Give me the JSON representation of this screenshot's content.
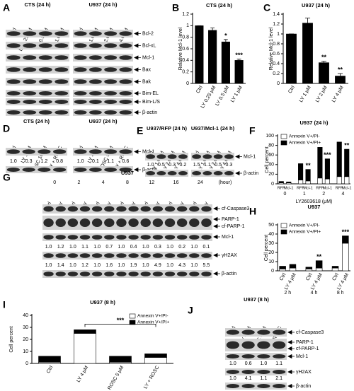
{
  "letters": [
    "A",
    "B",
    "C",
    "D",
    "E",
    "F",
    "G",
    "H",
    "I",
    "J"
  ],
  "blots": {
    "A": {
      "groups": [
        {
          "title": "CTS (24 h)",
          "lanes": [
            "Ctrl",
            "LY 0.25 μM",
            "LY 0.5 μM",
            "LY 1.0 μM"
          ]
        },
        {
          "title": "U937 (24 h)",
          "lanes": [
            "Ctrl",
            "LY 1.0 μM",
            "LY 2.0 μM",
            "LY 4.0 μM"
          ]
        }
      ],
      "bands": [
        "Bcl-2",
        "Bcl-xL",
        "Mcl-1",
        "Bax",
        "Bak",
        "Bim-EL",
        "Bim-L/S",
        "β-actin"
      ]
    },
    "D": {
      "groups": [
        {
          "title": "CTS (24 h)",
          "lanes": [
            "Ctrl",
            "LY 1 μM",
            "ROSC 10 μM",
            "LY + ROSC"
          ],
          "quant": [
            "1.0",
            "0.3",
            "1.2",
            "0.8"
          ]
        },
        {
          "title": "U937 (24 h)",
          "lanes": [
            "Ctrl",
            "LY 4 μM",
            "ROSC 5 μM",
            "LY + ROSC"
          ],
          "quant": [
            "1.0",
            "0.1",
            "1.1",
            "0.6"
          ]
        }
      ],
      "bands": [
        "Mcl-1",
        "β-actin"
      ]
    },
    "E": {
      "groups": [
        {
          "title": "U937/RFP (24 h)",
          "lanes": [
            "Ctrl",
            "LY 1.0 μM",
            "LY 2.0 μM",
            "LY 4.0 μM"
          ],
          "quant": [
            "1.0",
            "0.5",
            "0.3",
            "0.2"
          ]
        },
        {
          "title": "U937/Mcl-1 (24 h)",
          "lanes": [
            "Ctrl",
            "LY 1.0 μM",
            "LY 2.0 μM",
            "LY 4.0 μM"
          ],
          "quant": [
            "1.5",
            "1.1",
            "0.5",
            "0.3"
          ]
        }
      ],
      "bands": [
        "Mcl-1",
        "β-actin"
      ]
    },
    "G": {
      "title": "U937",
      "times": [
        "0",
        "2",
        "4",
        "8",
        "12",
        "16",
        "24"
      ],
      "time_unit": "(hour)",
      "lanes": [
        "Ctrl",
        "LY"
      ],
      "bands": [
        "cf-Caspase3",
        "PARP-1",
        "cf-PARP-1",
        "Mcl-1",
        "γH2AX",
        "β-actin"
      ],
      "quant": [
        [
          "1.0",
          "1.2",
          "1.0",
          "1.1",
          "1.0",
          "0.7",
          "1.0",
          "0.4",
          "1.0",
          "0.3",
          "1.0",
          "0.2",
          "1.0",
          "0.1"
        ],
        [
          "1.0",
          "1.4",
          "1.0",
          "1.2",
          "1.0",
          "1.6",
          "1.0",
          "1.9",
          "1.0",
          "4.9",
          "1.0",
          "4.3",
          "1.0",
          "5.5"
        ]
      ]
    },
    "J": {
      "title": "U937 (8 h)",
      "lanes": [
        "Ctrl",
        "LY 4 μM",
        "ROSC 5 μM",
        "LY + ROSC"
      ],
      "bands": [
        "cf-Caspase3",
        "PARP-1",
        "cf-PARP-1",
        "Mcl-1",
        "γH2AX",
        "β-actin"
      ],
      "quant": [
        [
          "1.0",
          "0.6",
          "1.0",
          "1.1"
        ],
        [
          "1.0",
          "4.1",
          "1.1",
          "2.1"
        ]
      ]
    }
  },
  "chart_data": [
    {
      "type": "bar",
      "title": "CTS (24 h)",
      "ylabel": "Relative Mcl-1 level",
      "categories": [
        "Ctrl",
        "LY 0.25 μM",
        "LY 0.5 μM",
        "LY 1 μM"
      ],
      "values": [
        1.0,
        0.92,
        0.72,
        0.4
      ],
      "errors": [
        0,
        0.04,
        0.04,
        0.02
      ],
      "annotations": [
        null,
        null,
        "*",
        "***"
      ],
      "color": "#000000",
      "ylim": [
        0,
        1.2
      ],
      "yticks": [
        0,
        0.2,
        0.4,
        0.6,
        0.8,
        1,
        1.2
      ],
      "xtick_rotation": 60
    },
    {
      "type": "bar",
      "title": "U937 (24 h)",
      "ylabel": "Relative Mcl-1 level",
      "categories": [
        "Ctrl",
        "LY 1 μM",
        "LY 2 μM",
        "LY 4 μM"
      ],
      "values": [
        1.0,
        1.22,
        0.42,
        0.15
      ],
      "errors": [
        0,
        0.1,
        0.03,
        0.05
      ],
      "annotations": [
        null,
        null,
        "**",
        "**"
      ],
      "color": "#000000",
      "ylim": [
        0,
        1.4
      ],
      "yticks": [
        0,
        0.2,
        0.4,
        0.6,
        0.8,
        1,
        1.2,
        1.4
      ],
      "xtick_rotation": 60
    },
    {
      "type": "stacked_bar",
      "title": "U937 (24 h)",
      "ylabel": "Cell percent",
      "xlabel": "LY2603618 (μM)",
      "categories": [
        "RFP",
        "Mcl-1",
        "RFP",
        "Mcl-1",
        "RFP",
        "Mcl-1",
        "RFP",
        "Mcl-1"
      ],
      "groups": [
        "0",
        "1",
        "2",
        "4"
      ],
      "series": [
        {
          "name": "Annexin V+/PI-",
          "color": "#ffffff",
          "values": [
            2,
            2,
            8,
            6,
            12,
            10,
            15,
            15
          ]
        },
        {
          "name": "Annexin V+/PI+",
          "color": "#000000",
          "values": [
            3,
            2,
            34,
            24,
            64,
            42,
            72,
            57
          ]
        }
      ],
      "annotations": [
        null,
        null,
        null,
        "**",
        null,
        "***",
        null,
        "**"
      ],
      "ylim": [
        0,
        100
      ],
      "yticks": [
        0,
        20,
        40,
        60,
        80,
        100
      ],
      "legend": "upper left"
    },
    {
      "type": "stacked_bar",
      "title": "U937",
      "ylabel": "Cell percent",
      "categories": [
        "Ctrl",
        "LY 4 μM",
        "Ctrl",
        "LY 4 μM",
        "Ctrl",
        "LY 4 μM"
      ],
      "groups": [
        "2 h",
        "4 h",
        "8 h"
      ],
      "series": [
        {
          "name": "Annexin V+/PI-",
          "color": "#ffffff",
          "values": [
            2,
            3,
            2,
            3,
            3,
            30
          ]
        },
        {
          "name": "Annexin V+/PI+",
          "color": "#000000",
          "values": [
            3,
            4,
            2,
            8,
            2,
            8
          ]
        }
      ],
      "annotations": [
        null,
        null,
        null,
        "**",
        null,
        "***"
      ],
      "ylim": [
        0,
        50
      ],
      "yticks": [
        0,
        10,
        20,
        30,
        40,
        50
      ],
      "legend": "upper left",
      "xtick_rotation": 60
    },
    {
      "type": "stacked_bar",
      "title": "U937 (8 h)",
      "ylabel": "Cell percent",
      "categories": [
        "Ctrl",
        "LY 4 μM",
        "ROSC 5 μM",
        "LY + ROSC"
      ],
      "series": [
        {
          "name": "Annexin V+/PI-",
          "color": "#ffffff",
          "values": [
            1,
            25,
            1,
            5
          ]
        },
        {
          "name": "Annexin V+/PI+",
          "color": "#000000",
          "values": [
            5,
            3,
            5,
            3
          ]
        }
      ],
      "annotation": "***",
      "ylim": [
        0,
        40
      ],
      "yticks": [
        0,
        10,
        20,
        30,
        40
      ],
      "legend": "upper right",
      "xtick_rotation": 60
    }
  ]
}
